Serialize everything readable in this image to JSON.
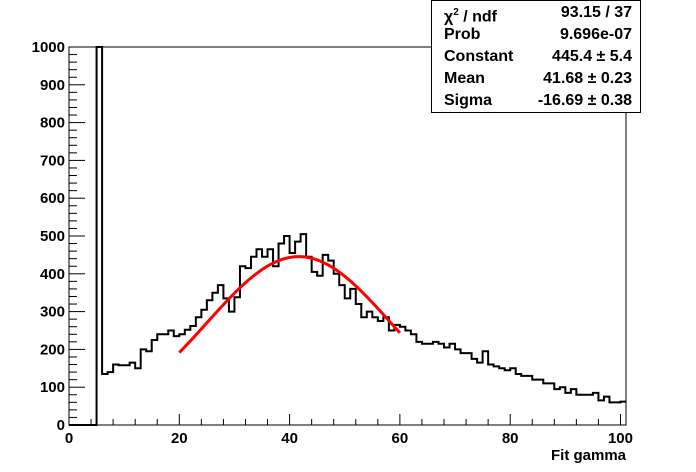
{
  "chart_data": {
    "type": "histogram",
    "xlabel": "Fit gamma",
    "ylabel": "",
    "xlim": [
      0,
      101
    ],
    "ylim": [
      0,
      1000
    ],
    "x_ticks": [
      0,
      20,
      40,
      60,
      80,
      100
    ],
    "y_ticks": [
      0,
      100,
      200,
      300,
      400,
      500,
      600,
      700,
      800,
      900,
      1000
    ],
    "bin_width": 1,
    "bin_start": 0,
    "values": [
      0,
      0,
      0,
      0,
      0,
      1000,
      135,
      140,
      160,
      158,
      158,
      165,
      150,
      200,
      195,
      225,
      240,
      240,
      250,
      235,
      240,
      252,
      262,
      285,
      305,
      330,
      350,
      370,
      335,
      300,
      338,
      420,
      415,
      445,
      465,
      445,
      465,
      420,
      480,
      500,
      455,
      485,
      505,
      445,
      405,
      395,
      450,
      435,
      400,
      370,
      335,
      360,
      320,
      285,
      300,
      285,
      275,
      285,
      250,
      265,
      260,
      250,
      240,
      220,
      215,
      215,
      220,
      215,
      205,
      215,
      200,
      190,
      190,
      175,
      165,
      195,
      160,
      155,
      150,
      145,
      150,
      135,
      130,
      130,
      120,
      120,
      110,
      110,
      95,
      100,
      85,
      95,
      80,
      80,
      80,
      85,
      65,
      75,
      60,
      60,
      62
    ],
    "fit": {
      "color": "#ff0000",
      "range": [
        20,
        60
      ],
      "constant": 445.4,
      "mean": 41.68,
      "sigma": -16.69
    },
    "colors": {
      "histogram": "#000000",
      "fit": "#ff0000"
    }
  },
  "stats": [
    {
      "label_main": "χ",
      "label_sup": "2",
      "label_rest": " / ndf",
      "value": "93.15 / 37"
    },
    {
      "label_main": "Prob",
      "label_sup": "",
      "label_rest": "",
      "value": "9.696e-07"
    },
    {
      "label_main": "Constant",
      "label_sup": "",
      "label_rest": "",
      "value": "445.4 ± 5.4"
    },
    {
      "label_main": "Mean",
      "label_sup": "",
      "label_rest": "",
      "value": "41.68 ± 0.23"
    },
    {
      "label_main": "Sigma",
      "label_sup": "",
      "label_rest": "",
      "value": "-16.69 ± 0.38"
    }
  ]
}
